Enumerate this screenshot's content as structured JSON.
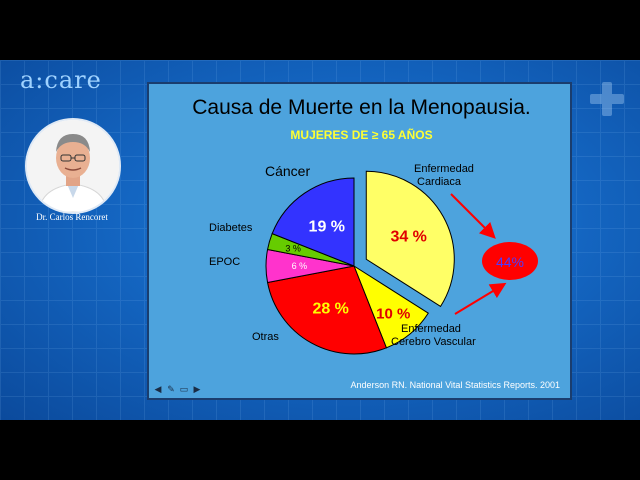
{
  "logo": {
    "text": "a:care"
  },
  "presenter": {
    "name": "Dr. Carlos Rencoret"
  },
  "slide": {
    "title": "Causa de Muerte en la Menopausia.",
    "subtitle": "MUJERES DE ≥ 65 AÑOS",
    "citation": "Anderson RN. National Vital Statistics Reports. 2001",
    "combined_label": "44%",
    "controls": [
      "back-arrow-icon",
      "pencil-icon",
      "slides-icon",
      "forward-arrow-icon"
    ]
  },
  "chart_data": {
    "type": "pie",
    "title": "Causa de Muerte en la Menopausia.",
    "subtitle": "MUJERES DE ≥ 65 AÑOS",
    "slices": [
      {
        "label": "Enfermedad Cardiaca",
        "value": 34,
        "value_label": "34 %",
        "color": "#ffff66",
        "exploded": true
      },
      {
        "label": "Enfermedad Cerebro Vascular",
        "value": 10,
        "value_label": "10 %",
        "color": "#ffff00",
        "exploded": false
      },
      {
        "label": "Otras",
        "value": 28,
        "value_label": "28 %",
        "color": "#ff0000",
        "exploded": false
      },
      {
        "label": "EPOC",
        "value": 6,
        "value_label": "6 %",
        "color": "#ff33cc",
        "exploded": false
      },
      {
        "label": "Diabetes",
        "value": 3,
        "value_label": "3 %",
        "color": "#66cc00",
        "exploded": false
      },
      {
        "label": "Cáncer",
        "value": 19,
        "value_label": "19 %",
        "color": "#3333ff",
        "exploded": false
      }
    ],
    "annotation": {
      "text": "44%",
      "refers_to": [
        "Enfermedad Cardiaca",
        "Enfermedad Cerebro Vascular"
      ],
      "color": "#ff0000"
    }
  }
}
